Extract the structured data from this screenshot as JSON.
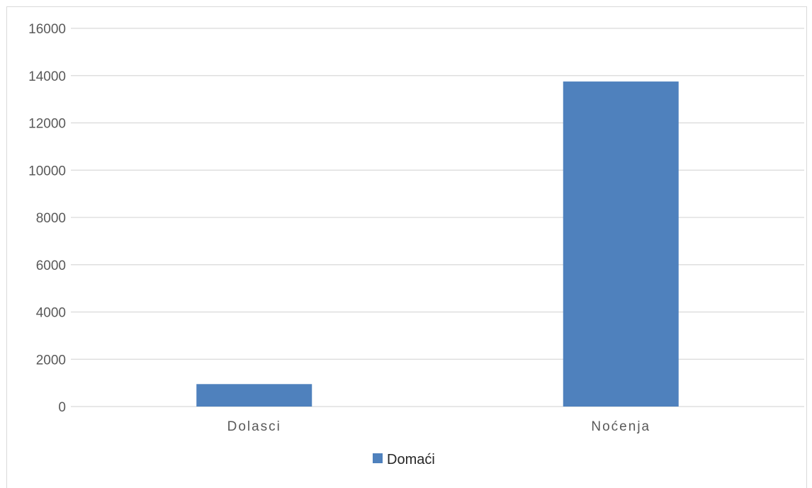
{
  "chart_data": {
    "type": "bar",
    "categories": [
      "Dolasci",
      "Noćenja"
    ],
    "series": [
      {
        "name": "Domaći",
        "values": [
          950,
          13750
        ],
        "color": "#4f81bd"
      }
    ],
    "ylim": [
      0,
      16000
    ],
    "yticks": [
      0,
      2000,
      4000,
      6000,
      8000,
      10000,
      12000,
      14000,
      16000
    ],
    "grid": true,
    "legend_position": "bottom",
    "title": "",
    "xlabel": "",
    "ylabel": ""
  }
}
